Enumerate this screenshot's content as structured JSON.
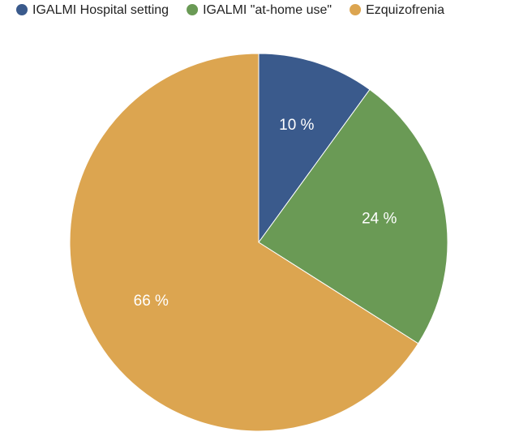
{
  "chart_data": {
    "type": "pie",
    "categories": [
      "IGALMI Hospital setting",
      "IGALMI \"at-home use\"",
      "Ezquizofrenia"
    ],
    "values": [
      10,
      24,
      66
    ],
    "value_labels": [
      "10 %",
      "24 %",
      "66 %"
    ],
    "colors": [
      "#3a5a8c",
      "#6a9a55",
      "#dca550"
    ],
    "legend": "top"
  }
}
